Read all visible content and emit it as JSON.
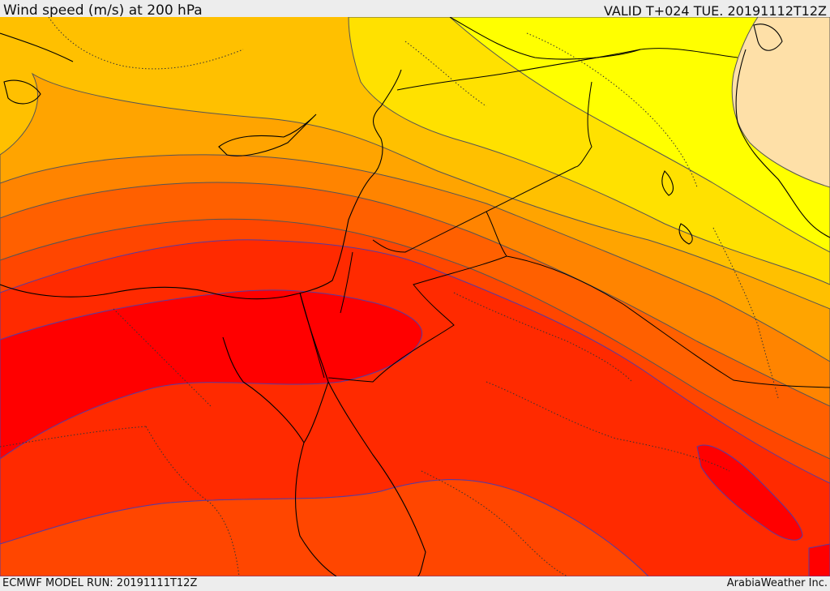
{
  "header": {
    "title": "Wind speed (m/s) at 200 hPa",
    "valid_time": "VALID T+024 TUE. 20191112T12Z"
  },
  "footer": {
    "model_run": "ECMWF MODEL RUN: 20191111T12Z",
    "credit": "ArabiaWeather Inc."
  },
  "map": {
    "colors": {
      "band_1": "#fee0a8",
      "band_2": "#ffff00",
      "band_3": "#ffe100",
      "band_4": "#ffc000",
      "band_5": "#ffa400",
      "band_6": "#ff8400",
      "band_7": "#ff6000",
      "band_8": "#ff4600",
      "band_9": "#ff2a00",
      "band_10": "#ff0000",
      "contour_line": "#555555",
      "border_line": "#000000"
    }
  }
}
